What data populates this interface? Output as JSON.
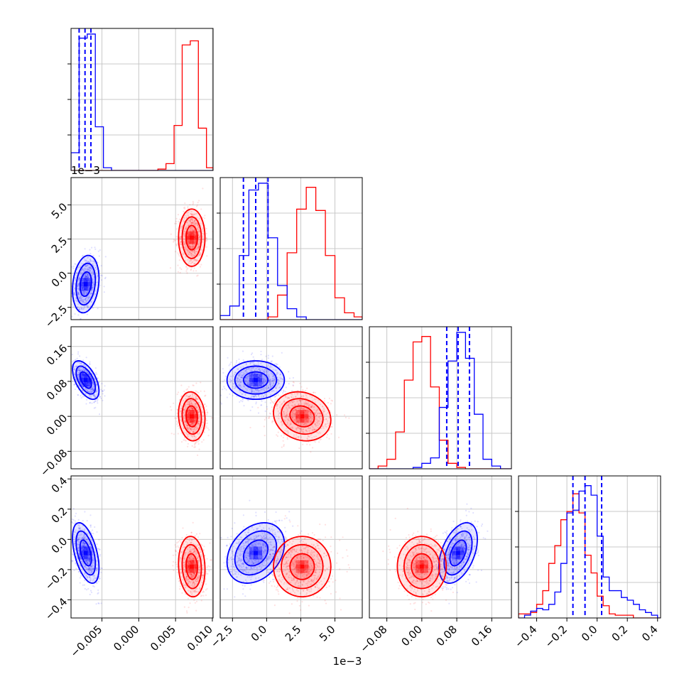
{
  "chart_data": {
    "type": "scatter",
    "subtype": "corner-plot",
    "grid": true,
    "colors": {
      "blue": "#0000ff",
      "red": "#ff0000",
      "grid": "#c8c8c8"
    },
    "offset_labels": {
      "left_row1": "1e−3",
      "bottom_col1": "1e−3"
    },
    "params": [
      {
        "id": "p0",
        "range": [
          -0.0092,
          0.0101
        ],
        "ticks": [
          -0.005,
          0.0,
          0.005,
          0.01
        ],
        "tick_labels": [
          "−0.005",
          "0.000",
          "0.005",
          "0.010"
        ],
        "bins": [
          -0.0092,
          -0.0081,
          -0.007,
          -0.0059,
          -0.0048,
          -0.0037,
          0.0026,
          0.0037,
          0.0048,
          0.0059,
          0.007,
          0.0081,
          0.0092,
          0.0101
        ],
        "hist_blue": [
          0.13,
          0.97,
          1.0,
          0.32,
          0.02,
          0,
          0,
          0,
          0,
          0,
          0,
          0,
          0
        ],
        "hist_red": [
          0,
          0,
          0,
          0,
          0,
          0,
          0.01,
          0.05,
          0.33,
          0.92,
          0.95,
          0.31,
          0.02
        ],
        "quantiles_blue": [
          -0.0081,
          -0.0073,
          -0.0065
        ]
      },
      {
        "id": "p1",
        "range": [
          -3.4,
          7.0
        ],
        "ticks": [
          -2.5,
          0.0,
          2.5,
          5.0
        ],
        "tick_labels": [
          "−2.5",
          "0.0",
          "2.5",
          "5.0"
        ],
        "bins": [
          -3.4,
          -2.7,
          -2.0,
          -1.3,
          -0.6,
          0.1,
          0.8,
          1.5,
          2.2,
          2.9,
          3.6,
          4.3,
          5.0,
          5.7,
          6.4,
          7.0
        ],
        "hist_blue": [
          0.03,
          0.1,
          0.47,
          0.95,
          1.0,
          0.6,
          0.25,
          0.08,
          0.02,
          0,
          0,
          0,
          0,
          0,
          0
        ],
        "hist_red": [
          0,
          0,
          0,
          0,
          0,
          0.02,
          0.18,
          0.49,
          0.81,
          0.97,
          0.8,
          0.47,
          0.16,
          0.05,
          0.02
        ],
        "quantiles_blue": [
          -1.7,
          -0.8,
          0.1
        ]
      },
      {
        "id": "p2",
        "range": [
          -0.12,
          0.205
        ],
        "ticks": [
          -0.08,
          0.0,
          0.08,
          0.16
        ],
        "tick_labels": [
          "−0.08",
          "0.00",
          "0.08",
          "0.16"
        ],
        "bins": [
          -0.12,
          -0.1,
          -0.08,
          -0.06,
          -0.04,
          -0.02,
          0.0,
          0.02,
          0.04,
          0.06,
          0.08,
          0.1,
          0.12,
          0.14,
          0.16,
          0.18,
          0.205
        ],
        "hist_blue": [
          0,
          0,
          0,
          0,
          0,
          0.01,
          0.04,
          0.08,
          0.45,
          0.79,
          1.0,
          0.81,
          0.4,
          0.07,
          0.02,
          0
        ],
        "hist_red": [
          0,
          0.02,
          0.07,
          0.27,
          0.65,
          0.93,
          0.97,
          0.6,
          0.21,
          0.04,
          0.01,
          0,
          0,
          0,
          0,
          0
        ],
        "quantiles_blue": [
          0.057,
          0.083,
          0.109
        ]
      },
      {
        "id": "p3",
        "range": [
          -0.52,
          0.42
        ],
        "ticks": [
          -0.4,
          -0.2,
          0.0,
          0.2,
          0.4
        ],
        "tick_labels": [
          "−0.4",
          "−0.2",
          "0.0",
          "0.2",
          "0.4"
        ],
        "bins": [
          -0.52,
          -0.48,
          -0.44,
          -0.4,
          -0.36,
          -0.32,
          -0.28,
          -0.24,
          -0.2,
          -0.16,
          -0.12,
          -0.08,
          -0.04,
          0.0,
          0.04,
          0.08,
          0.12,
          0.16,
          0.2,
          0.24,
          0.28,
          0.32,
          0.36,
          0.4,
          0.42
        ],
        "hist_blue": [
          0,
          0.02,
          0.05,
          0.07,
          0.06,
          0.1,
          0.19,
          0.4,
          0.77,
          0.79,
          0.93,
          0.97,
          0.9,
          0.6,
          0.3,
          0.2,
          0.2,
          0.15,
          0.13,
          0.1,
          0.06,
          0.04,
          0.02,
          0
        ],
        "hist_red": [
          0.03,
          0.03,
          0.04,
          0.1,
          0.2,
          0.4,
          0.53,
          0.72,
          0.78,
          0.91,
          0.77,
          0.46,
          0.33,
          0.16,
          0.09,
          0.03,
          0.02,
          0.02,
          0.02,
          0,
          0,
          0,
          0,
          0
        ],
        "quantiles_blue": [
          -0.16,
          -0.08,
          0.03
        ]
      }
    ],
    "populations": [
      {
        "name": "",
        "color": "#0000ff",
        "mean": [
          -0.0072,
          -0.8,
          0.083,
          -0.09
        ],
        "std": [
          0.0009,
          1.05,
          0.022,
          0.1
        ],
        "corr": [
          [
            1,
            0.2,
            -0.55,
            -0.5
          ],
          [
            0.2,
            1,
            0,
            0.3
          ],
          [
            -0.55,
            0,
            1,
            0.45
          ],
          [
            -0.5,
            0.3,
            0.45,
            1
          ]
        ]
      },
      {
        "name": "",
        "color": "#ff0000",
        "mean": [
          0.0072,
          2.6,
          0.0,
          -0.18
        ],
        "std": [
          0.0009,
          1.05,
          0.028,
          0.1
        ],
        "corr": [
          [
            1,
            0,
            -0.1,
            -0.1
          ],
          [
            0,
            1,
            -0.15,
            0
          ],
          [
            -0.1,
            -0.15,
            1,
            0
          ],
          [
            -0.1,
            0,
            0,
            1
          ]
        ]
      }
    ]
  }
}
